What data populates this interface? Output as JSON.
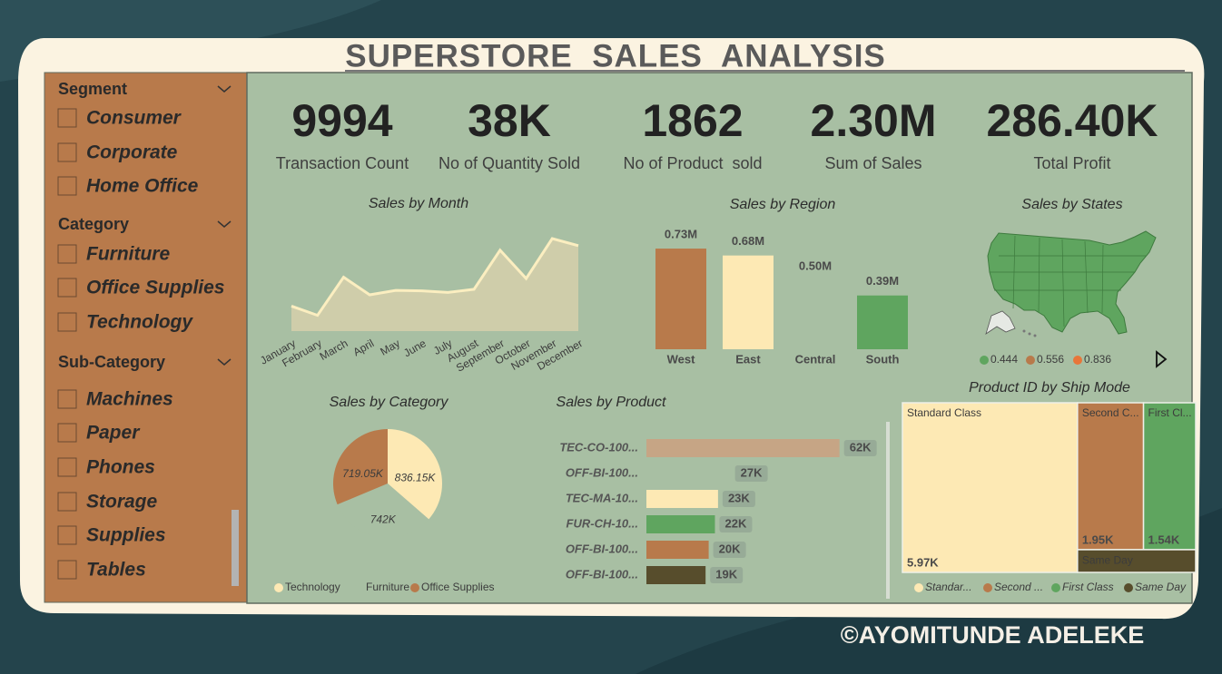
{
  "title": "SUPERSTORE  SALES  ANALYSIS",
  "slicers": [
    {
      "title": "Segment",
      "items": [
        "Consumer",
        "Corporate",
        "Home Office"
      ]
    },
    {
      "title": "Category",
      "items": [
        "Furniture",
        "Office Supplies",
        "Technology"
      ]
    },
    {
      "title": "Sub-Category",
      "items": [
        "Machines",
        "Paper",
        "Phones",
        "Storage",
        "Supplies",
        "Tables"
      ]
    }
  ],
  "kpis": [
    {
      "value": "9994",
      "label": "Transaction Count"
    },
    {
      "value": "38K",
      "label": "No of Quantity Sold"
    },
    {
      "value": "1862",
      "label": "No of Product  sold"
    },
    {
      "value": "2.30M",
      "label": "Sum of Sales"
    },
    {
      "value": "286.40K",
      "label": "Total Profit"
    }
  ],
  "chart_data": [
    {
      "type": "area",
      "title": "Sales by Month",
      "categories": [
        "January",
        "February",
        "March",
        "April",
        "May",
        "June",
        "July",
        "August",
        "September",
        "October",
        "November",
        "December"
      ],
      "values": [
        95,
        60,
        205,
        138,
        155,
        153,
        147,
        159,
        308,
        200,
        352,
        325
      ],
      "color": "#fbeec0",
      "fill": "#cfcdaa"
    },
    {
      "type": "bar",
      "title": "Sales by Region",
      "categories": [
        "West",
        "East",
        "Central",
        "South"
      ],
      "values": [
        0.73,
        0.68,
        0.5,
        0.39
      ],
      "value_labels": [
        "0.73M",
        "0.68M",
        "0.50M",
        "0.39M"
      ],
      "colors": [
        "#b87a4b",
        "#fde9b4",
        "#a8bfa3",
        "#5fa55f"
      ]
    },
    {
      "type": "map",
      "title": "Sales by States",
      "legend": [
        0.444,
        0.556,
        0.836
      ],
      "colors": [
        "#5fa55f",
        "#b87a4b",
        "#e8763a"
      ]
    },
    {
      "type": "pie",
      "title": "Sales by Category",
      "categories": [
        "Technology",
        "Furniture",
        "Office Supplies"
      ],
      "values": [
        836.15,
        742,
        719.05
      ],
      "value_labels": [
        "836.15K",
        "742K",
        "719.05K"
      ],
      "colors": [
        "#fde9b4",
        "#a8bfa3",
        "#b87a4b"
      ]
    },
    {
      "type": "hbar",
      "title": "Sales by Product",
      "categories": [
        "TEC-CO-100...",
        "OFF-BI-100...",
        "TEC-MA-10...",
        "FUR-CH-10...",
        "OFF-BI-100...",
        "OFF-BI-100..."
      ],
      "values": [
        62,
        27,
        23,
        22,
        20,
        19
      ],
      "value_labels": [
        "62K",
        "27K",
        "23K",
        "22K",
        "20K",
        "19K"
      ],
      "colors": [
        "#c6a585",
        "#a8bfa3",
        "#fde9b4",
        "#5fa55f",
        "#b87a4b",
        "#574d2c"
      ]
    },
    {
      "type": "treemap",
      "title": "Product ID by Ship Mode",
      "categories": [
        "Standard Class",
        "Second C...",
        "First Cl...",
        "Same Day"
      ],
      "legend_labels": [
        "Standar...",
        "Second ...",
        "First Class",
        "Same Day"
      ],
      "values": [
        5.97,
        1.95,
        1.54,
        0.54
      ],
      "value_labels": [
        "5.97K",
        "1.95K",
        "1.54K",
        null
      ],
      "colors": [
        "#fde9b4",
        "#b87a4b",
        "#5fa55f",
        "#574d2c"
      ]
    }
  ],
  "credit": "©AYOMITUNDE ADELEKE"
}
